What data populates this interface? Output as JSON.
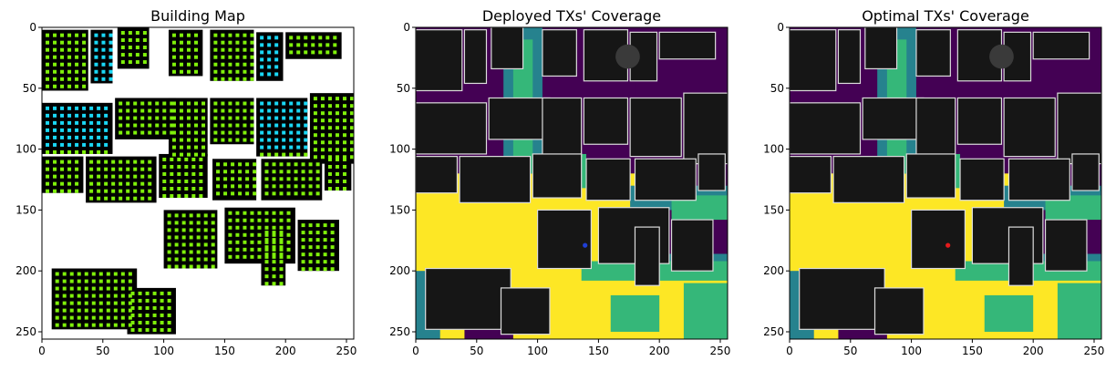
{
  "figure": {
    "colors": {
      "coverage": [
        "#440154",
        "#26828e",
        "#35b779",
        "#fde725"
      ],
      "building": "#161616",
      "building_outline": "#dcdcdc",
      "deployed_tx": "#1f3fd6",
      "optimal_tx": "#e41a1c"
    }
  },
  "chart_data": [
    {
      "type": "heatmap",
      "title": "Building Map",
      "xlabel": "",
      "ylabel": "",
      "xlim": [
        0,
        256
      ],
      "ylim": [
        256,
        0
      ],
      "xticks": [
        0,
        50,
        100,
        150,
        200,
        250
      ],
      "yticks": [
        0,
        50,
        100,
        150,
        200,
        250
      ],
      "grid": false,
      "description_values": "binary building footprint with candidate TX points (green / cyan / blue squares)"
    },
    {
      "type": "heatmap",
      "title": "Deployed TXs' Coverage",
      "xlabel": "",
      "ylabel": "",
      "xlim": [
        0,
        256
      ],
      "ylim": [
        256,
        0
      ],
      "xticks": [
        0,
        50,
        100,
        150,
        200,
        250
      ],
      "yticks": [
        0,
        50,
        100,
        150,
        200,
        250
      ],
      "grid": false,
      "tx": [
        {
          "x": 139,
          "y": 179
        }
      ]
    },
    {
      "type": "heatmap",
      "title": "Optimal TXs' Coverage",
      "xlabel": "",
      "ylabel": "",
      "xlim": [
        0,
        256
      ],
      "ylim": [
        256,
        0
      ],
      "xticks": [
        0,
        50,
        100,
        150,
        200,
        250
      ],
      "yticks": [
        0,
        50,
        100,
        150,
        200,
        250
      ],
      "grid": false,
      "tx": [
        {
          "x": 130,
          "y": 179
        }
      ]
    }
  ]
}
